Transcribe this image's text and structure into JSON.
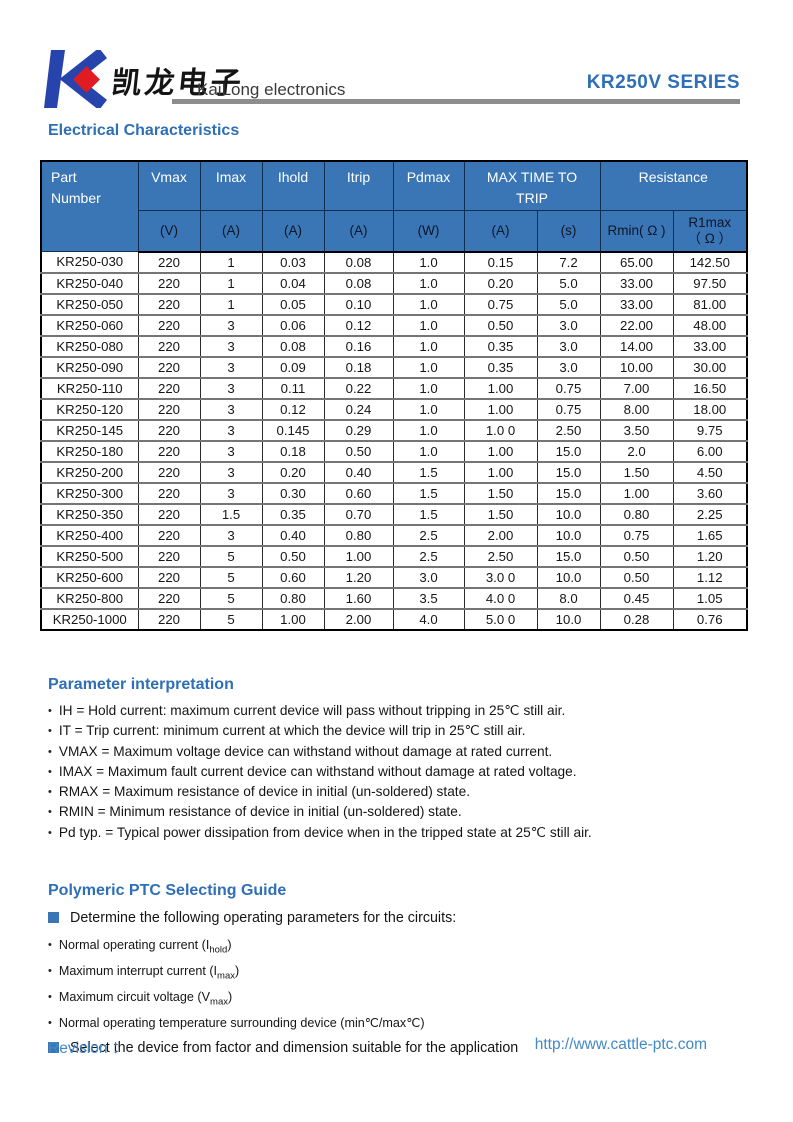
{
  "header": {
    "brand_cn": "凯龙电子",
    "brand_en": "KaiLong electronics",
    "series": "KR250V SERIES"
  },
  "colors": {
    "accent_blue": "#2e6fb5",
    "table_header_blue": "#3a76b5",
    "link_blue": "#4289c8",
    "logo_blue": "#2744ad",
    "logo_red": "#e01b22",
    "bar_gray": "#8d8d8d"
  },
  "sections": {
    "electrical": {
      "title": "Electrical Characteristics"
    },
    "parameter_interpretation": {
      "title": "Parameter interpretation",
      "items": [
        "IH = Hold current: maximum current device will pass without tripping in 25℃  still air.",
        "IT = Trip current: minimum current at which the device will trip in 25℃  still air.",
        "VMAX = Maximum voltage device can withstand without damage at rated current.",
        "IMAX = Maximum fault current device can withstand without damage at rated voltage.",
        "RMAX = Maximum resistance of device in initial (un-soldered) state.",
        "RMIN = Minimum resistance of device in initial (un-soldered) state.",
        "Pd typ. = Typical power dissipation from device when in the tripped state at 25℃  still air."
      ]
    },
    "selecting_guide": {
      "title": "Polymeric PTC Selecting Guide",
      "square_items": [
        "Determine the following operating parameters for the circuits:",
        "Select the device from factor and dimension suitable for the application"
      ],
      "bullets": [
        {
          "pre": "Normal operating current (I",
          "sub": "hold",
          "post": ")"
        },
        {
          "pre": "Maximum interrupt current (I",
          "sub": "max",
          "post": ")"
        },
        {
          "pre": "Maximum circuit voltage (V",
          "sub": "max",
          "post": ")"
        },
        {
          "pre": "Normal operating temperature surrounding device (min℃/max℃)",
          "sub": "",
          "post": ""
        }
      ]
    }
  },
  "table": {
    "header": {
      "part": [
        "Part",
        "Number"
      ],
      "cols": [
        {
          "label": "Vmax",
          "unit": "(V)"
        },
        {
          "label": "Imax",
          "unit": "(A)"
        },
        {
          "label": "Ihold",
          "unit": "(A)"
        },
        {
          "label": "Itrip",
          "unit": "(A)"
        },
        {
          "label": "Pdmax",
          "unit": "(W)"
        }
      ],
      "trip_group": {
        "label_line1": "MAX TIME TO",
        "label_line2": "TRIP",
        "units": [
          "(A)",
          "(s)"
        ]
      },
      "resistance_group": {
        "label": "Resistance",
        "rmin": "Rmin( Ω )",
        "r1max_line1": "R1max",
        "r1max_line2": "（ Ω ）"
      }
    },
    "rows": [
      [
        "KR250-030",
        "220",
        "1",
        "0.03",
        "0.08",
        "1.0",
        "0.15",
        "7.2",
        "65.00",
        "142.50"
      ],
      [
        "KR250-040",
        "220",
        "1",
        "0.04",
        "0.08",
        "1.0",
        "0.20",
        "5.0",
        "33.00",
        "97.50"
      ],
      [
        "KR250-050",
        "220",
        "1",
        "0.05",
        "0.10",
        "1.0",
        "0.75",
        "5.0",
        "33.00",
        "81.00"
      ],
      [
        "KR250-060",
        "220",
        "3",
        "0.06",
        "0.12",
        "1.0",
        "0.50",
        "3.0",
        "22.00",
        "48.00"
      ],
      [
        "KR250-080",
        "220",
        "3",
        "0.08",
        "0.16",
        "1.0",
        "0.35",
        "3.0",
        "14.00",
        "33.00"
      ],
      [
        "KR250-090",
        "220",
        "3",
        "0.09",
        "0.18",
        "1.0",
        "0.35",
        "3.0",
        "10.00",
        "30.00"
      ],
      [
        "KR250-110",
        "220",
        "3",
        "0.11",
        "0.22",
        "1.0",
        "1.00",
        "0.75",
        "7.00",
        "16.50"
      ],
      [
        "KR250-120",
        "220",
        "3",
        "0.12",
        "0.24",
        "1.0",
        "1.00",
        "0.75",
        "8.00",
        "18.00"
      ],
      [
        "KR250-145",
        "220",
        "3",
        "0.145",
        "0.29",
        "1.0",
        "1.0 0",
        "2.50",
        "3.50",
        "9.75"
      ],
      [
        "KR250-180",
        "220",
        "3",
        "0.18",
        "0.50",
        "1.0",
        "1.00",
        "15.0",
        "2.0",
        "6.00"
      ],
      [
        "KR250-200",
        "220",
        "3",
        "0.20",
        "0.40",
        "1.5",
        "1.00",
        "15.0",
        "1.50",
        "4.50"
      ],
      [
        "KR250-300",
        "220",
        "3",
        "0.30",
        "0.60",
        "1.5",
        "1.50",
        "15.0",
        "1.00",
        "3.60"
      ],
      [
        "KR250-350",
        "220",
        "1.5",
        "0.35",
        "0.70",
        "1.5",
        "1.50",
        "10.0",
        "0.80",
        "2.25"
      ],
      [
        "KR250-400",
        "220",
        "3",
        "0.40",
        "0.80",
        "2.5",
        "2.00",
        "10.0",
        "0.75",
        "1.65"
      ],
      [
        "KR250-500",
        "220",
        "5",
        "0.50",
        "1.00",
        "2.5",
        "2.50",
        "15.0",
        "0.50",
        "1.20"
      ],
      [
        "KR250-600",
        "220",
        "5",
        "0.60",
        "1.20",
        "3.0",
        "3.0 0",
        "10.0",
        "0.50",
        "1.12"
      ],
      [
        "KR250-800",
        "220",
        "5",
        "0.80",
        "1.60",
        "3.5",
        "4.0 0",
        "8.0",
        "0.45",
        "1.05"
      ],
      [
        "KR250-1000",
        "220",
        "5",
        "1.00",
        "2.00",
        "4.0",
        "5.0 0",
        "10.0",
        "0.28",
        "0.76"
      ]
    ]
  },
  "footer": {
    "revision_label": "Revision ：",
    "url": "http://www.cattle-ptc.com"
  }
}
